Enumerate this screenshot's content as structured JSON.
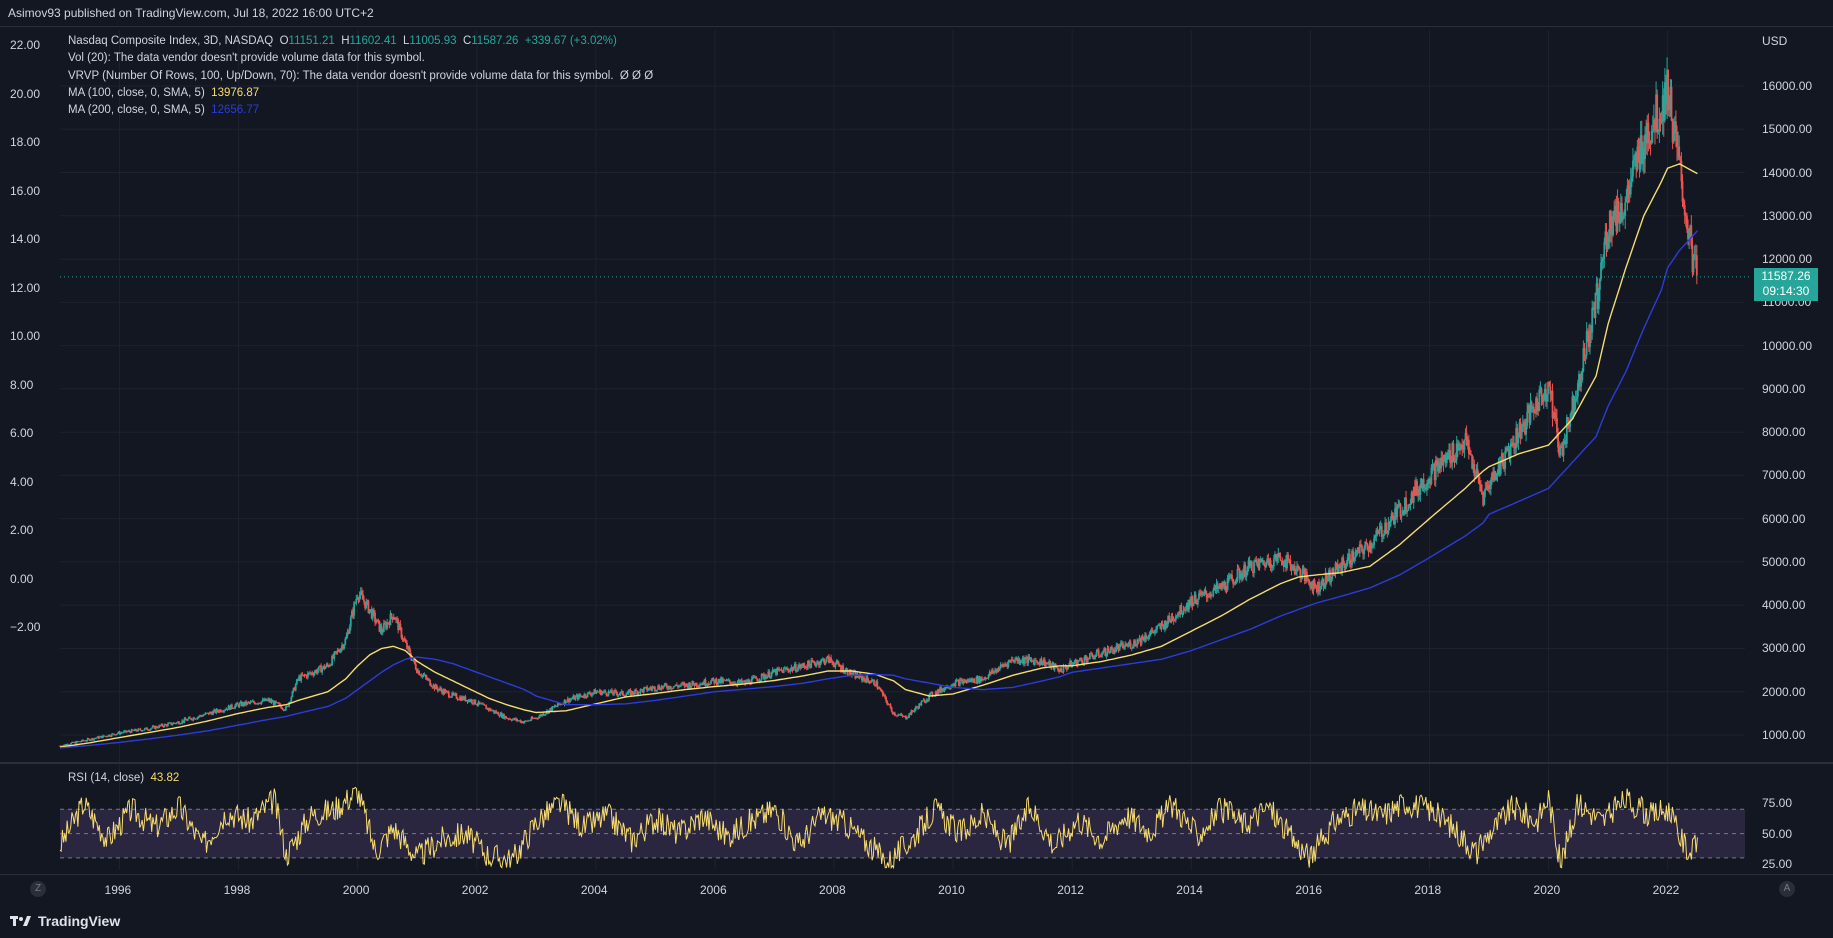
{
  "header": {
    "published_text": "Asimov93 published on TradingView.com, Jul 18, 2022 16:00 UTC+2"
  },
  "legend": {
    "symbol_line_prefix": "Nasdaq Composite Index, 3D, NASDAQ",
    "open_label": "O",
    "open": "11151.21",
    "high_label": "H",
    "high": "11602.41",
    "low_label": "L",
    "low": "11005.93",
    "close_label": "C",
    "close": "11587.26",
    "change": "+339.67 (+3.02%)",
    "vol_line": "Vol (20): The data vendor doesn't provide volume data for this symbol.",
    "vrvp_line": "VRVP (Number Of Rows, 100, Up/Down, 70): The data vendor doesn't provide volume data for this symbol.",
    "vrvp_suffix": "Ø  Ø  Ø",
    "ma100_label": "MA (100, close, 0, SMA, 5)",
    "ma100_value": "13976.87",
    "ma200_label": "MA (200, close, 0, SMA, 5)",
    "ma200_value": "12656.77"
  },
  "rsi_legend": {
    "label": "RSI (14, close)",
    "value": "43.82"
  },
  "price_tag": {
    "price": "11587.26",
    "countdown": "09:14:30"
  },
  "currency": "USD",
  "left_axis_labels": [
    "22.00",
    "20.00",
    "18.00",
    "16.00",
    "14.00",
    "12.00",
    "10.00",
    "8.00",
    "6.00",
    "4.00",
    "2.00",
    "0.00",
    "−2.00"
  ],
  "right_axis_labels": [
    "16000.00",
    "15000.00",
    "14000.00",
    "13000.00",
    "12000.00",
    "11000.00",
    "10000.00",
    "9000.00",
    "8000.00",
    "7000.00",
    "6000.00",
    "5000.00",
    "4000.00",
    "3000.00",
    "2000.00",
    "1000.00"
  ],
  "rsi_axis_labels": [
    "75.00",
    "50.00",
    "25.00"
  ],
  "time_axis_labels": [
    "1996",
    "1998",
    "2000",
    "2002",
    "2004",
    "2006",
    "2008",
    "2010",
    "2012",
    "2014",
    "2016",
    "2018",
    "2020",
    "2022"
  ],
  "corner_left": "Z",
  "corner_right": "A",
  "footer": {
    "brand": "TradingView"
  },
  "colors": {
    "background": "#131722",
    "up": "#26a69a",
    "down": "#ef5350",
    "ma100": "#f7dc6f",
    "ma200": "#2c3cd8",
    "rsi": "#f7dc6f",
    "rsi_band": "#2a2640"
  },
  "chart_data": [
    {
      "type": "line",
      "title": "Nasdaq Composite Index, 3D, NASDAQ",
      "ylabel": "USD",
      "ylim": [
        500,
        16500
      ],
      "x": [
        1995.0,
        1995.5,
        1996.0,
        1996.5,
        1997.0,
        1997.5,
        1998.0,
        1998.5,
        1998.8,
        1999.0,
        1999.5,
        1999.8,
        2000.0,
        2000.2,
        2000.4,
        2000.6,
        2000.8,
        2001.0,
        2001.3,
        2001.6,
        2001.9,
        2002.2,
        2002.5,
        2002.8,
        2003.0,
        2003.5,
        2004.0,
        2004.5,
        2005.0,
        2005.5,
        2006.0,
        2006.5,
        2007.0,
        2007.5,
        2007.9,
        2008.3,
        2008.7,
        2009.0,
        2009.2,
        2009.6,
        2010.0,
        2010.5,
        2011.0,
        2011.5,
        2011.8,
        2012.0,
        2012.5,
        2013.0,
        2013.5,
        2014.0,
        2014.5,
        2015.0,
        2015.5,
        2015.8,
        2016.1,
        2016.5,
        2017.0,
        2017.5,
        2018.0,
        2018.6,
        2018.9,
        2019.0,
        2019.5,
        2020.0,
        2020.2,
        2020.4,
        2020.8,
        2021.0,
        2021.3,
        2021.6,
        2021.9,
        2022.0,
        2022.2,
        2022.4,
        2022.5
      ],
      "series": [
        {
          "name": "Nasdaq Composite Index",
          "values": [
            750,
            900,
            1050,
            1150,
            1300,
            1500,
            1700,
            1800,
            1600,
            2300,
            2600,
            3200,
            4300,
            3900,
            3400,
            3800,
            3100,
            2500,
            2100,
            1900,
            1800,
            1600,
            1400,
            1300,
            1400,
            1800,
            2000,
            1950,
            2100,
            2150,
            2250,
            2200,
            2450,
            2600,
            2750,
            2400,
            2200,
            1500,
            1400,
            1900,
            2200,
            2300,
            2750,
            2700,
            2500,
            2650,
            2900,
            3100,
            3500,
            4100,
            4400,
            4900,
            5100,
            4800,
            4400,
            4900,
            5400,
            6200,
            7000,
            7800,
            6500,
            6800,
            8000,
            9100,
            7500,
            8600,
            11000,
            12800,
            13300,
            14800,
            15500,
            16000,
            14000,
            12200,
            11587
          ]
        },
        {
          "name": "MA (100, close, 0, SMA, 5)",
          "values": [
            720,
            820,
            940,
            1060,
            1180,
            1330,
            1500,
            1640,
            1700,
            1800,
            2000,
            2300,
            2600,
            2850,
            3000,
            3050,
            2950,
            2700,
            2450,
            2250,
            2050,
            1850,
            1700,
            1580,
            1520,
            1560,
            1720,
            1880,
            1960,
            2050,
            2120,
            2180,
            2260,
            2370,
            2480,
            2480,
            2400,
            2250,
            2050,
            1900,
            1950,
            2150,
            2380,
            2550,
            2600,
            2600,
            2700,
            2850,
            3050,
            3400,
            3750,
            4150,
            4500,
            4650,
            4700,
            4750,
            4900,
            5400,
            6000,
            6700,
            7100,
            7200,
            7500,
            7700,
            8000,
            8300,
            9300,
            10500,
            11800,
            13000,
            13800,
            14100,
            14200,
            14050,
            13976
          ]
        },
        {
          "name": "MA (200, close, 0, SMA, 5)",
          "values": [
            700,
            760,
            830,
            910,
            1000,
            1100,
            1230,
            1360,
            1430,
            1500,
            1660,
            1850,
            2050,
            2250,
            2450,
            2620,
            2750,
            2800,
            2750,
            2650,
            2500,
            2350,
            2200,
            2050,
            1900,
            1700,
            1700,
            1720,
            1800,
            1900,
            2000,
            2060,
            2120,
            2200,
            2300,
            2380,
            2400,
            2380,
            2300,
            2200,
            2100,
            2050,
            2100,
            2250,
            2350,
            2450,
            2550,
            2650,
            2750,
            2950,
            3200,
            3450,
            3750,
            3900,
            4050,
            4200,
            4400,
            4700,
            5100,
            5600,
            5900,
            6100,
            6400,
            6700,
            7000,
            7300,
            7900,
            8600,
            9400,
            10400,
            11300,
            11800,
            12200,
            12500,
            12656
          ]
        }
      ]
    },
    {
      "type": "line",
      "title": "RSI (14, close)",
      "ylim": [
        20,
        90
      ],
      "x": [
        1995.0,
        1995.4,
        1995.8,
        1996.2,
        1996.6,
        1997.0,
        1997.4,
        1997.8,
        1998.2,
        1998.6,
        1998.8,
        1999.2,
        1999.6,
        2000.0,
        2000.3,
        2000.6,
        2001.0,
        2001.4,
        2001.8,
        2002.2,
        2002.6,
        2003.0,
        2003.4,
        2003.8,
        2004.2,
        2004.6,
        2005.0,
        2005.4,
        2005.8,
        2006.2,
        2006.6,
        2007.0,
        2007.4,
        2007.8,
        2008.2,
        2008.6,
        2008.9,
        2009.3,
        2009.7,
        2010.1,
        2010.5,
        2010.9,
        2011.3,
        2011.7,
        2012.1,
        2012.5,
        2012.9,
        2013.3,
        2013.7,
        2014.1,
        2014.5,
        2014.9,
        2015.3,
        2015.7,
        2016.0,
        2016.4,
        2016.8,
        2017.2,
        2017.6,
        2018.0,
        2018.4,
        2018.8,
        2019.0,
        2019.4,
        2019.8,
        2020.0,
        2020.2,
        2020.5,
        2020.9,
        2021.3,
        2021.7,
        2022.0,
        2022.2,
        2022.4,
        2022.5
      ],
      "series": [
        {
          "name": "RSI (14, close)",
          "values": [
            40,
            75,
            45,
            70,
            55,
            72,
            40,
            68,
            60,
            78,
            32,
            65,
            70,
            85,
            35,
            55,
            30,
            45,
            50,
            32,
            28,
            60,
            75,
            55,
            65,
            45,
            62,
            50,
            65,
            48,
            60,
            70,
            40,
            66,
            58,
            40,
            26,
            45,
            70,
            50,
            65,
            40,
            72,
            40,
            62,
            45,
            66,
            52,
            74,
            48,
            70,
            58,
            72,
            45,
            30,
            60,
            70,
            65,
            76,
            70,
            55,
            34,
            50,
            72,
            60,
            80,
            25,
            75,
            60,
            78,
            65,
            70,
            48,
            32,
            43.82
          ]
        }
      ]
    }
  ]
}
